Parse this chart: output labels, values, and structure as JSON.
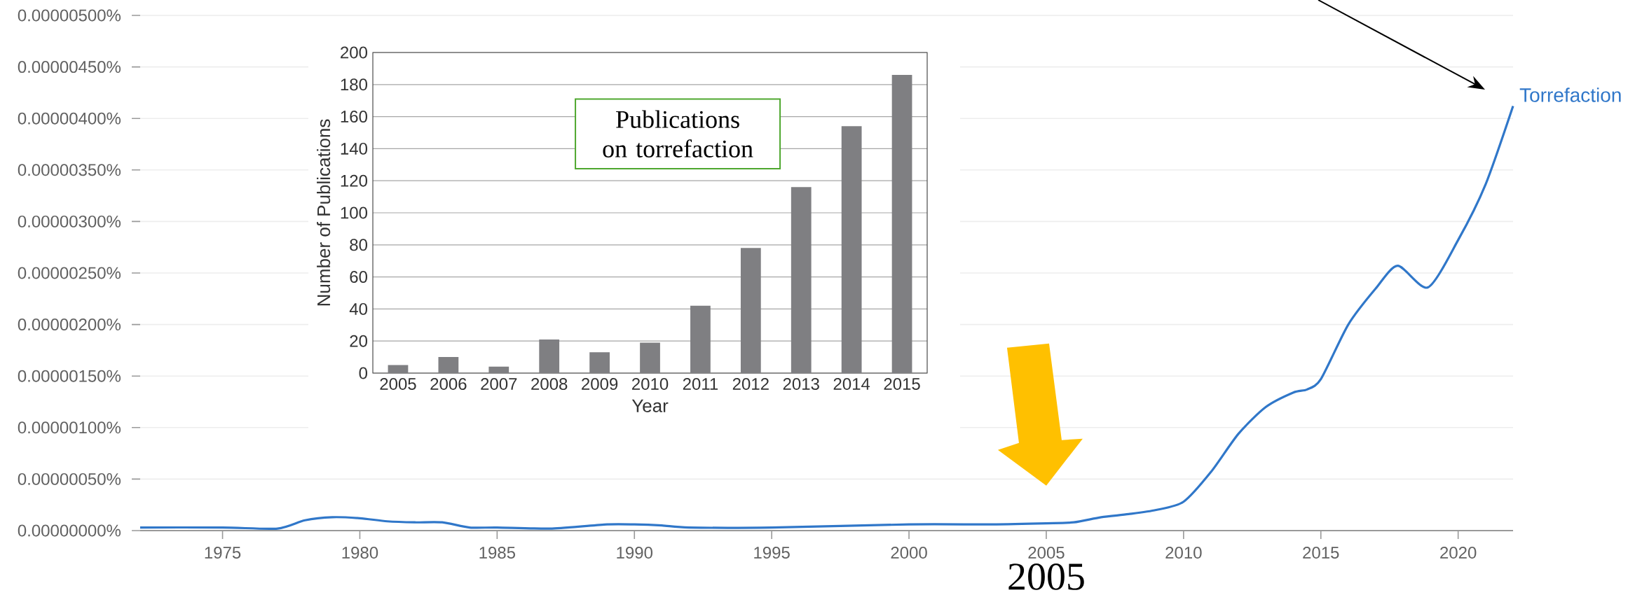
{
  "chart_data": [
    {
      "type": "line",
      "x": [
        1972,
        1975,
        1977,
        1978,
        1979,
        1980,
        1981,
        1982,
        1983,
        1984,
        1985,
        1987,
        1989,
        1990,
        1991,
        1992,
        1995,
        2000,
        2003,
        2005,
        2006,
        2007,
        2008,
        2009,
        2010,
        2011,
        2012,
        2013,
        2014,
        2014.5,
        2015,
        2016,
        2017,
        2017.8,
        2018.9,
        2020,
        2021,
        2022
      ],
      "series": [
        {
          "name": "Torrefaction",
          "color": "#3077c9",
          "values": [
            3e-08,
            3e-08,
            2e-08,
            1e-07,
            1.3e-07,
            1.2e-07,
            9e-08,
            8e-08,
            8e-08,
            3e-08,
            3e-08,
            2e-08,
            6e-08,
            6e-08,
            5e-08,
            3e-08,
            3e-08,
            6e-08,
            6e-08,
            7e-08,
            8e-08,
            1.3e-07,
            1.6e-07,
            2e-07,
            2.8e-07,
            5.7e-07,
            9.4e-07,
            1.2e-06,
            1.34e-06,
            1.37e-06,
            1.47e-06,
            2e-06,
            2.35e-06,
            2.57e-06,
            2.36e-06,
            2.82e-06,
            3.36e-06,
            4.12e-06
          ]
        }
      ],
      "xlim": [
        1972,
        2022
      ],
      "xticks": [
        1975,
        1980,
        1985,
        1990,
        1995,
        2000,
        2005,
        2010,
        2015,
        2020
      ],
      "ylim": [
        0,
        5e-06
      ],
      "yticks": [
        {
          "value": 0,
          "label": "0.00000000%"
        },
        {
          "value": 5e-07,
          "label": "0.00000050%"
        },
        {
          "value": 1e-06,
          "label": "0.00000100%"
        },
        {
          "value": 1.5e-06,
          "label": "0.00000150%"
        },
        {
          "value": 2e-06,
          "label": "0.00000200%"
        },
        {
          "value": 2.5e-06,
          "label": "0.00000250%"
        },
        {
          "value": 3e-06,
          "label": "0.00000300%"
        },
        {
          "value": 3.5e-06,
          "label": "0.00000350%"
        },
        {
          "value": 4e-06,
          "label": "0.00000400%"
        },
        {
          "value": 4.5e-06,
          "label": "0.00000450%"
        },
        {
          "value": 5e-06,
          "label": "0.00000500%"
        }
      ],
      "grid": "y",
      "annotations": [
        {
          "text": "2005",
          "x": 2005,
          "y": 7e-08
        }
      ]
    },
    {
      "type": "bar",
      "title": "Publications on torrefaction",
      "xlabel": "Year",
      "ylabel": "Number of Publications",
      "categories": [
        "2005",
        "2006",
        "2007",
        "2008",
        "2009",
        "2010",
        "2011",
        "2012",
        "2013",
        "2014",
        "2015"
      ],
      "values": [
        5,
        10,
        4,
        21,
        13,
        19,
        42,
        78,
        116,
        154,
        186
      ],
      "color": "#7f7f82",
      "ylim": [
        0,
        200
      ],
      "yticks": [
        0,
        20,
        40,
        60,
        80,
        100,
        120,
        140,
        160,
        180,
        200
      ],
      "grid": "y"
    }
  ]
}
